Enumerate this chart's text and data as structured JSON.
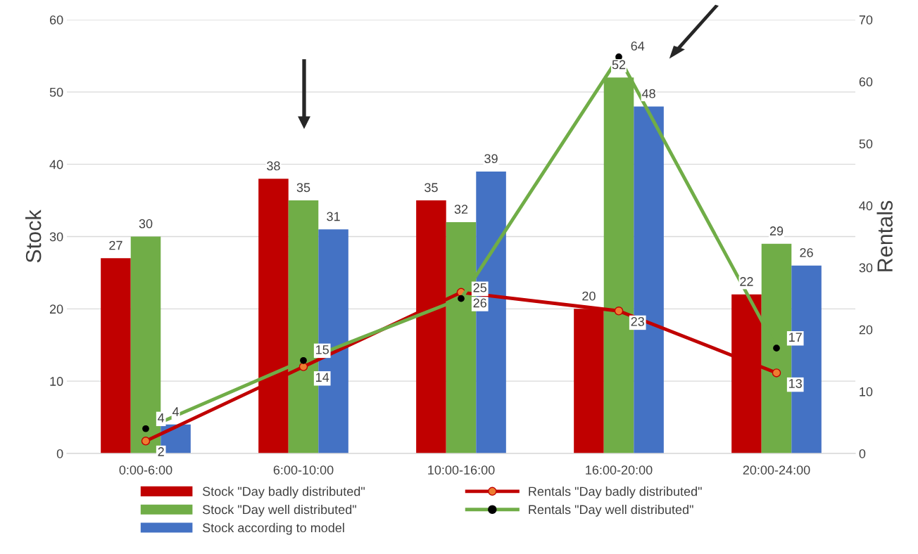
{
  "chart_data": {
    "type": "bar",
    "ylabel": "Stock",
    "y2label": "Rentals",
    "categories": [
      "0:00-6:00",
      "6:00-10:00",
      "10:00-16:00",
      "16:00-20:00",
      "20:00-24:00"
    ],
    "series": [
      {
        "name": "Stock \"Day badly distributed\"",
        "color": "#c00000",
        "values": [
          27,
          38,
          35,
          20,
          22
        ]
      },
      {
        "name": "Stock \"Day well distributed\"",
        "color": "#70ad47",
        "values": [
          30,
          35,
          32,
          52,
          29
        ]
      },
      {
        "name": "Stock according to model",
        "color": "#4472c4",
        "values": [
          4,
          31,
          39,
          48,
          26
        ]
      },
      {
        "name": "Rentals \"Day badly distributed\"",
        "type": "line",
        "axis": "y2",
        "color": "#c00000",
        "values": [
          2,
          14,
          26,
          23,
          13
        ]
      },
      {
        "name": "Rentals \"Day well distributed\"",
        "type": "line",
        "axis": "y2",
        "color": "#70ad47",
        "values": [
          4,
          15,
          25,
          64,
          17
        ]
      }
    ],
    "ylim": [
      0,
      60
    ],
    "yticks": [
      0,
      10,
      20,
      30,
      40,
      50,
      60
    ],
    "y2lim": [
      0,
      70
    ],
    "y2ticks": [
      0,
      10,
      20,
      30,
      40,
      50,
      60,
      70
    ],
    "grid": "y",
    "legend": "bottom",
    "marker": "circle",
    "data_labels": true
  }
}
